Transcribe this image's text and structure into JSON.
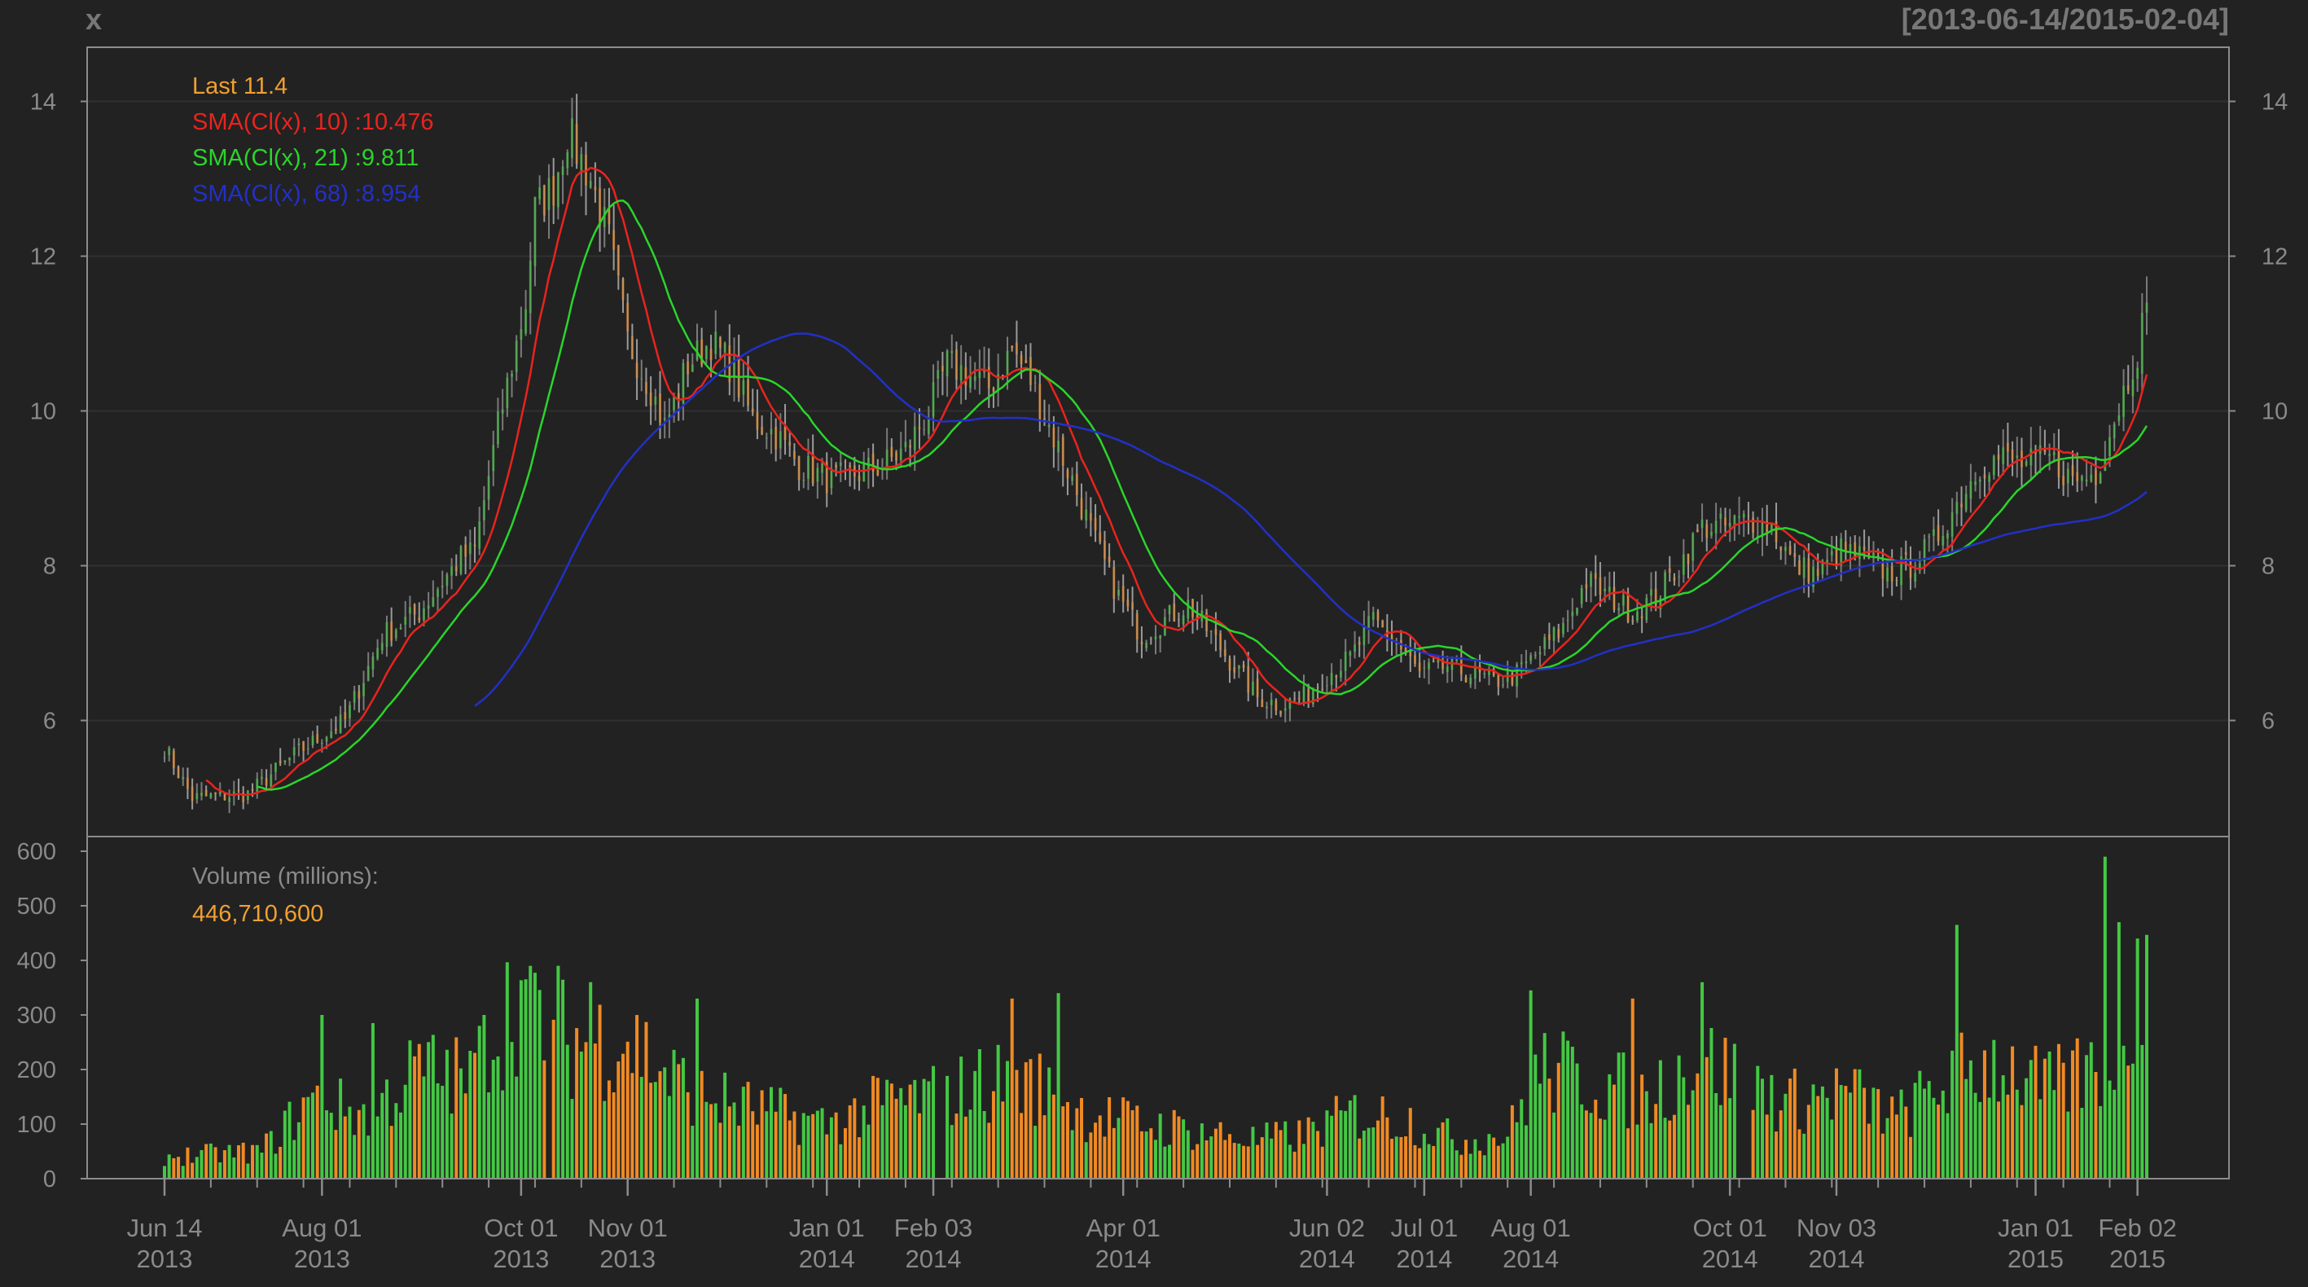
{
  "header": {
    "series_name": "x",
    "date_range": "[2013-06-14/2015-02-04]"
  },
  "colors": {
    "background": "#222222",
    "frame": "#8c8c8c",
    "grid": "#303030",
    "text": "#8a8a8a",
    "last": "#f0a030",
    "sma10": "#e8241e",
    "sma21": "#2ad52a",
    "sma68": "#2230c8",
    "candle_up": "#7a7a7a",
    "candle_down": "#9a9a9a",
    "vol_up": "#44c844",
    "vol_down": "#f08a24"
  },
  "legend": {
    "last": "Last 11.4",
    "sma10": "SMA(Cl(x), 10) :10.476",
    "sma21": "SMA(Cl(x), 21) :9.811",
    "sma68": "SMA(Cl(x), 68) :8.954"
  },
  "volume_panel": {
    "label": "Volume (millions):",
    "value": "446,710,600"
  },
  "chart_data": [
    {
      "type": "candlestick",
      "title": "x",
      "subtitle": "[2013-06-14/2015-02-04]",
      "ylim": [
        4.5,
        14.7
      ],
      "y_ticks": [
        6,
        8,
        10,
        12,
        14
      ],
      "grid": true,
      "x_ticks": [
        {
          "date": "2013-06-14",
          "label1": "Jun 14",
          "label2": "2013"
        },
        {
          "date": "2013-08-01",
          "label1": "Aug 01",
          "label2": "2013"
        },
        {
          "date": "2013-10-01",
          "label1": "Oct 01",
          "label2": "2013"
        },
        {
          "date": "2013-11-01",
          "label1": "Nov 01",
          "label2": "2013"
        },
        {
          "date": "2014-01-01",
          "label1": "Jan 01",
          "label2": "2014"
        },
        {
          "date": "2014-02-03",
          "label1": "Feb 03",
          "label2": "2014"
        },
        {
          "date": "2014-04-01",
          "label1": "Apr 01",
          "label2": "2014"
        },
        {
          "date": "2014-06-02",
          "label1": "Jun 02",
          "label2": "2014"
        },
        {
          "date": "2014-07-01",
          "label1": "Jul 01",
          "label2": "2014"
        },
        {
          "date": "2014-08-01",
          "label1": "Aug 01",
          "label2": "2014"
        },
        {
          "date": "2014-10-01",
          "label1": "Oct 01",
          "label2": "2014"
        },
        {
          "date": "2014-11-03",
          "label1": "Nov 03",
          "label2": "2014"
        },
        {
          "date": "2015-01-01",
          "label1": "Jan 01",
          "label2": "2015"
        },
        {
          "date": "2015-02-02",
          "label1": "Feb 02",
          "label2": "2015"
        }
      ],
      "close_anchors": [
        [
          "2013-06-14",
          5.65
        ],
        [
          "2013-06-24",
          5.0
        ],
        [
          "2013-07-10",
          5.05
        ],
        [
          "2013-07-25",
          5.6
        ],
        [
          "2013-08-08",
          6.0
        ],
        [
          "2013-08-20",
          7.1
        ],
        [
          "2013-08-30",
          7.4
        ],
        [
          "2013-09-06",
          7.8
        ],
        [
          "2013-09-12",
          8.1
        ],
        [
          "2013-09-17",
          8.2
        ],
        [
          "2013-09-24",
          9.8
        ],
        [
          "2013-10-02",
          11.4
        ],
        [
          "2013-10-04",
          12.6
        ],
        [
          "2013-10-10",
          12.9
        ],
        [
          "2013-10-15",
          13.6
        ],
        [
          "2013-10-22",
          13.0
        ],
        [
          "2013-10-28",
          12.2
        ],
        [
          "2013-11-01",
          10.9
        ],
        [
          "2013-11-08",
          10.3
        ],
        [
          "2013-11-13",
          9.8
        ],
        [
          "2013-11-20",
          10.6
        ],
        [
          "2013-11-27",
          10.9
        ],
        [
          "2013-12-03",
          10.6
        ],
        [
          "2013-12-10",
          9.9
        ],
        [
          "2013-12-17",
          9.7
        ],
        [
          "2013-12-24",
          9.3
        ],
        [
          "2014-01-02",
          9.1
        ],
        [
          "2014-01-10",
          9.2
        ],
        [
          "2014-01-17",
          9.3
        ],
        [
          "2014-01-24",
          9.5
        ],
        [
          "2014-01-31",
          10.0
        ],
        [
          "2014-02-06",
          10.6
        ],
        [
          "2014-02-12",
          10.5
        ],
        [
          "2014-02-19",
          10.3
        ],
        [
          "2014-02-26",
          10.8
        ],
        [
          "2014-03-04",
          10.4
        ],
        [
          "2014-03-10",
          9.8
        ],
        [
          "2014-03-17",
          9.1
        ],
        [
          "2014-03-24",
          8.3
        ],
        [
          "2014-03-31",
          7.6
        ],
        [
          "2014-04-07",
          7.1
        ],
        [
          "2014-04-14",
          7.3
        ],
        [
          "2014-04-21",
          7.5
        ],
        [
          "2014-04-28",
          7.1
        ],
        [
          "2014-05-05",
          6.7
        ],
        [
          "2014-05-12",
          6.3
        ],
        [
          "2014-05-19",
          6.2
        ],
        [
          "2014-05-26",
          6.3
        ],
        [
          "2014-06-02",
          6.6
        ],
        [
          "2014-06-09",
          6.8
        ],
        [
          "2014-06-16",
          7.3
        ],
        [
          "2014-06-23",
          7.0
        ],
        [
          "2014-06-30",
          6.6
        ],
        [
          "2014-07-08",
          6.7
        ],
        [
          "2014-07-15",
          6.6
        ],
        [
          "2014-07-22",
          6.5
        ],
        [
          "2014-07-29",
          6.6
        ],
        [
          "2014-08-05",
          6.9
        ],
        [
          "2014-08-12",
          7.2
        ],
        [
          "2014-08-19",
          7.8
        ],
        [
          "2014-08-26",
          7.6
        ],
        [
          "2014-09-02",
          7.4
        ],
        [
          "2014-09-09",
          7.6
        ],
        [
          "2014-09-16",
          8.0
        ],
        [
          "2014-09-23",
          8.5
        ],
        [
          "2014-09-30",
          8.5
        ],
        [
          "2014-10-07",
          8.6
        ],
        [
          "2014-10-14",
          8.5
        ],
        [
          "2014-10-21",
          8.0
        ],
        [
          "2014-10-28",
          7.9
        ],
        [
          "2014-11-04",
          8.2
        ],
        [
          "2014-11-11",
          8.1
        ],
        [
          "2014-11-18",
          7.9
        ],
        [
          "2014-11-25",
          8.0
        ],
        [
          "2014-12-02",
          8.3
        ],
        [
          "2014-12-09",
          8.8
        ],
        [
          "2014-12-16",
          9.3
        ],
        [
          "2014-12-23",
          9.4
        ],
        [
          "2014-12-30",
          9.3
        ],
        [
          "2015-01-06",
          9.4
        ],
        [
          "2015-01-13",
          9.1
        ],
        [
          "2015-01-20",
          9.2
        ],
        [
          "2015-01-26",
          9.9
        ],
        [
          "2015-02-02",
          10.8
        ],
        [
          "2015-02-04",
          11.4
        ]
      ],
      "sma": [
        {
          "name": "SMA(Cl(x), 10)",
          "n": 10,
          "last": 10.476
        },
        {
          "name": "SMA(Cl(x), 21)",
          "n": 21,
          "last": 9.811
        },
        {
          "name": "SMA(Cl(x), 68)",
          "n": 68,
          "last": 8.954
        }
      ]
    },
    {
      "type": "bar",
      "title": "Volume (millions):",
      "ylim": [
        0,
        600
      ],
      "y_ticks": [
        0,
        100,
        200,
        300,
        400,
        500,
        600
      ],
      "grid": false,
      "volume_anchors": [
        [
          "2013-06-14",
          40
        ],
        [
          "2013-07-15",
          50
        ],
        [
          "2013-07-29",
          140
        ],
        [
          "2013-08-15",
          120
        ],
        [
          "2013-08-30",
          200
        ],
        [
          "2013-09-15",
          180
        ],
        [
          "2013-09-30",
          340
        ],
        [
          "2013-10-15",
          250
        ],
        [
          "2013-11-01",
          260
        ],
        [
          "2013-11-15",
          180
        ],
        [
          "2013-12-01",
          140
        ],
        [
          "2013-12-15",
          120
        ],
        [
          "2014-01-01",
          100
        ],
        [
          "2014-01-20",
          140
        ],
        [
          "2014-02-03",
          150
        ],
        [
          "2014-02-20",
          180
        ],
        [
          "2014-03-05",
          170
        ],
        [
          "2014-03-20",
          120
        ],
        [
          "2014-04-05",
          100
        ],
        [
          "2014-04-20",
          90
        ],
        [
          "2014-05-10",
          70
        ],
        [
          "2014-05-25",
          80
        ],
        [
          "2014-06-10",
          120
        ],
        [
          "2014-06-25",
          110
        ],
        [
          "2014-07-10",
          70
        ],
        [
          "2014-07-25",
          80
        ],
        [
          "2014-08-05",
          200
        ],
        [
          "2014-08-20",
          180
        ],
        [
          "2014-09-05",
          150
        ],
        [
          "2014-09-20",
          220
        ],
        [
          "2014-10-05",
          180
        ],
        [
          "2014-10-20",
          140
        ],
        [
          "2014-11-05",
          160
        ],
        [
          "2014-11-20",
          110
        ],
        [
          "2014-12-05",
          180
        ],
        [
          "2014-12-20",
          220
        ],
        [
          "2015-01-05",
          160
        ],
        [
          "2015-01-20",
          200
        ],
        [
          "2015-02-04",
          330
        ]
      ],
      "volume_gaps": [
        [
          "2013-10-09",
          "2013-10-09"
        ],
        [
          "2014-02-04",
          "2014-02-05"
        ],
        [
          "2014-10-03",
          "2014-10-07"
        ]
      ],
      "volume_spikes": [
        [
          "2013-08-01",
          300
        ],
        [
          "2013-08-16",
          285
        ],
        [
          "2013-09-19",
          300
        ],
        [
          "2013-10-03",
          390
        ],
        [
          "2013-10-11",
          390
        ],
        [
          "2013-10-22",
          360
        ],
        [
          "2013-11-22",
          330
        ],
        [
          "2014-02-26",
          330
        ],
        [
          "2014-03-12",
          340
        ],
        [
          "2014-08-01",
          345
        ],
        [
          "2014-09-02",
          330
        ],
        [
          "2014-09-23",
          360
        ],
        [
          "2014-12-09",
          465
        ],
        [
          "2015-01-22",
          590
        ],
        [
          "2015-01-27",
          470
        ],
        [
          "2015-02-02",
          440
        ],
        [
          "2015-02-04",
          447
        ]
      ],
      "last_volume": 446710600
    }
  ]
}
